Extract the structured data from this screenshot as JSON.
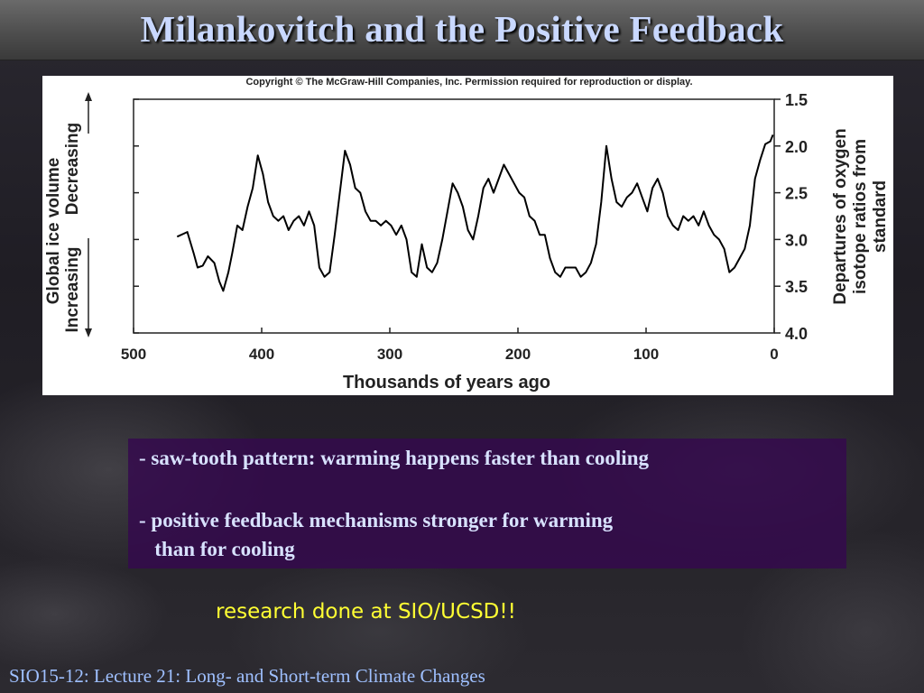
{
  "slide": {
    "title": "Milankovitch and the Positive Feedback",
    "figure": {
      "copyright": "Copyright © The McGraw-Hill Companies, Inc. Permission required for reproduction or display.",
      "left_label_top_line": "Global ice volume",
      "left_label_decreasing": "Decreasing",
      "left_label_increasing": "Increasing"
    },
    "notes": [
      "- saw-tooth pattern: warming happens faster than cooling",
      "- positive feedback mechanisms stronger for warming",
      "   than for cooling"
    ],
    "research_note": "research done at SIO/UCSD!!",
    "footer": "SIO15-12: Lecture 21: Long- and Short-term Climate Changes"
  },
  "chart_data": {
    "type": "line",
    "title": "",
    "xlabel": "Thousands of years ago",
    "ylabel_lines": [
      "Departures of oxygen",
      "isotope ratios from",
      "standard"
    ],
    "xlim": [
      500,
      0
    ],
    "ylim": [
      4.0,
      1.5
    ],
    "x_ticks": [
      500,
      400,
      300,
      200,
      100,
      0
    ],
    "y_ticks": [
      "1.5",
      "2.0",
      "2.5",
      "3.0",
      "3.5",
      "4.0"
    ],
    "line_color": "#000000",
    "series": [
      {
        "x": [
          466,
          458,
          453,
          450,
          446,
          442,
          437,
          433,
          430,
          426,
          423,
          419,
          415,
          411,
          407,
          403,
          399,
          395,
          391,
          387,
          383,
          379,
          375,
          371,
          367,
          363,
          359,
          355,
          351,
          347,
          343,
          339,
          335,
          331,
          327,
          323,
          319,
          315,
          311,
          307,
          303,
          299,
          295,
          291,
          287,
          283,
          279,
          275,
          271,
          267,
          263,
          259,
          255,
          251,
          247,
          243,
          239,
          235,
          231,
          227,
          223,
          219,
          215,
          211,
          207,
          203,
          199,
          195,
          191,
          187,
          183,
          179,
          175,
          171,
          167,
          163,
          159,
          155,
          151,
          147,
          143,
          139,
          135,
          131,
          127,
          123,
          119,
          115,
          111,
          107,
          103,
          99,
          95,
          91,
          87,
          83,
          79,
          75,
          71,
          67,
          63,
          59,
          55,
          51,
          47,
          43,
          39,
          35,
          31,
          27,
          23,
          19,
          15,
          11,
          7,
          3,
          1
        ],
        "y": [
          2.97,
          2.92,
          3.15,
          3.3,
          3.28,
          3.18,
          3.25,
          3.45,
          3.55,
          3.35,
          3.15,
          2.85,
          2.9,
          2.65,
          2.45,
          2.1,
          2.3,
          2.6,
          2.75,
          2.8,
          2.75,
          2.9,
          2.8,
          2.75,
          2.85,
          2.7,
          2.85,
          3.3,
          3.4,
          3.35,
          2.95,
          2.5,
          2.05,
          2.2,
          2.45,
          2.5,
          2.7,
          2.8,
          2.8,
          2.85,
          2.8,
          2.85,
          2.95,
          2.85,
          3.0,
          3.35,
          3.4,
          3.05,
          3.3,
          3.35,
          3.25,
          3.0,
          2.7,
          2.4,
          2.5,
          2.65,
          2.9,
          3.0,
          2.75,
          2.45,
          2.35,
          2.5,
          2.35,
          2.2,
          2.3,
          2.4,
          2.5,
          2.55,
          2.75,
          2.8,
          2.95,
          2.95,
          3.2,
          3.35,
          3.4,
          3.3,
          3.3,
          3.3,
          3.4,
          3.35,
          3.25,
          3.05,
          2.6,
          2.0,
          2.35,
          2.6,
          2.65,
          2.55,
          2.5,
          2.4,
          2.55,
          2.7,
          2.45,
          2.35,
          2.5,
          2.75,
          2.85,
          2.9,
          2.75,
          2.8,
          2.75,
          2.85,
          2.7,
          2.85,
          2.95,
          3.0,
          3.1,
          3.35,
          3.3,
          3.2,
          3.1,
          2.85,
          2.35,
          2.15,
          1.98,
          1.95,
          1.88
        ]
      }
    ]
  }
}
